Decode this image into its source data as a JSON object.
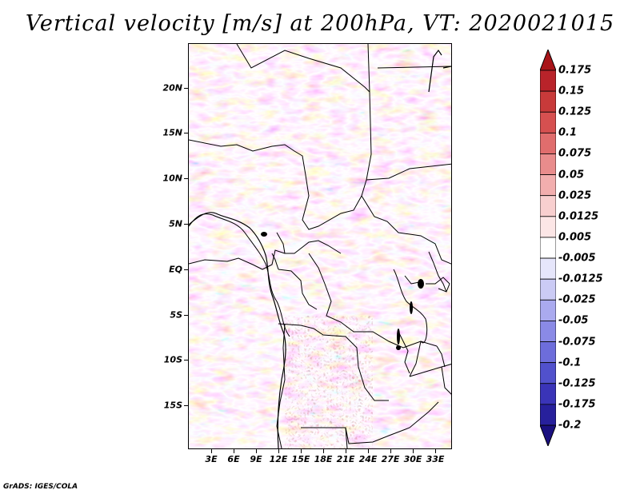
{
  "title": "Vertical velocity [m/s] at 200hPa, VT: 2020021015",
  "footer": "GrADS: IGES/COLA",
  "map": {
    "variable": "Vertical velocity",
    "units": "m/s",
    "level": "200hPa",
    "valid_time": "2020021015",
    "lat_labels": [
      "20N",
      "15N",
      "10N",
      "5N",
      "EQ",
      "5S",
      "10S",
      "15S"
    ],
    "lon_labels": [
      "3E",
      "6E",
      "9E",
      "12E",
      "15E",
      "18E",
      "21E",
      "24E",
      "27E",
      "30E",
      "33E"
    ],
    "colormap": "red (positive) / blue (negative) diverging"
  },
  "colorbar": {
    "labels": [
      "0.175",
      "0.15",
      "0.125",
      "0.1",
      "0.075",
      "0.05",
      "0.025",
      "0.0125",
      "0.005",
      "-0.005",
      "-0.0125",
      "-0.025",
      "-0.05",
      "-0.075",
      "-0.1",
      "-0.125",
      "-0.175",
      "-0.2"
    ],
    "colors": [
      "#a81419",
      "#b9232a",
      "#c83a3a",
      "#d65050",
      "#e06d6d",
      "#e98c8c",
      "#f2aeae",
      "#f8cfcf",
      "#fce6e6",
      "#ffffff",
      "#e6e6fb",
      "#cbcbf5",
      "#aaaaef",
      "#8a8ae6",
      "#6d6ddb",
      "#5151cc",
      "#3a34b8",
      "#27209c",
      "#1a1080"
    ]
  }
}
